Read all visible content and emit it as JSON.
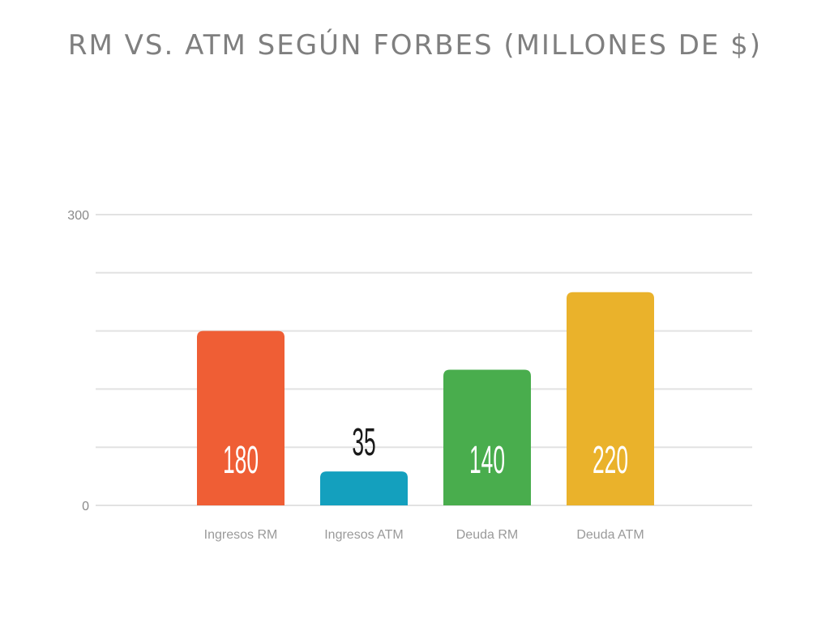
{
  "chart_data": {
    "type": "bar",
    "title": "RM VS. ATM SEGÚN FORBES (MILLONES DE $)",
    "categories": [
      "Ingresos RM",
      "Ingresos ATM",
      "Deuda RM",
      "Deuda ATM"
    ],
    "values": [
      180,
      35,
      140,
      220
    ],
    "bar_colors": [
      "#ef5e35",
      "#14a0be",
      "#49ad4d",
      "#eab22b"
    ],
    "label_colors": [
      "#ffffff",
      "#1a1a1a",
      "#ffffff",
      "#ffffff"
    ],
    "label_position": [
      "inside",
      "above",
      "inside",
      "inside"
    ],
    "ylim": [
      0,
      300
    ],
    "y_ticks": [
      0,
      300
    ],
    "gridline_values": [
      0,
      60,
      120,
      180,
      240,
      300
    ],
    "grid": true,
    "xlabel": "",
    "ylabel": ""
  }
}
